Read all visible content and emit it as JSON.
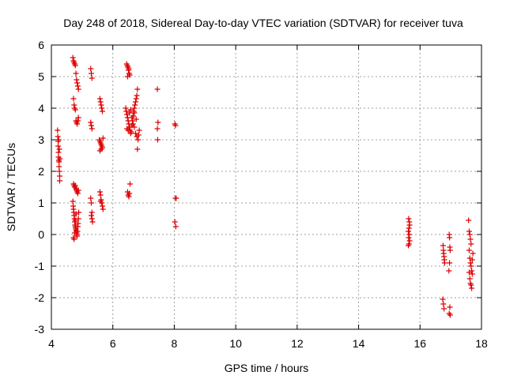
{
  "chart_data": {
    "type": "scatter",
    "title": "Day 248 of 2018, Sidereal Day-to-day VTEC variation (SDTVAR) for receiver tuva",
    "xlabel": "GPS time / hours",
    "ylabel": "SDTVAR / TECUs",
    "xlim": [
      4,
      18
    ],
    "ylim": [
      -3,
      6
    ],
    "xticks": [
      "4",
      "6",
      "8",
      "10",
      "12",
      "14",
      "16",
      "18"
    ],
    "yticks": [
      "-3",
      "-2",
      "-1",
      "0",
      "1",
      "2",
      "3",
      "4",
      "5",
      "6"
    ],
    "grid": true,
    "marker": "+",
    "color": "#dd0000",
    "series": [
      {
        "name": "SDTVAR",
        "points": [
          [
            4.2,
            3.3
          ],
          [
            4.21,
            3.1
          ],
          [
            4.22,
            2.95
          ],
          [
            4.22,
            2.8
          ],
          [
            4.23,
            2.6
          ],
          [
            4.23,
            2.45
          ],
          [
            4.24,
            2.35
          ],
          [
            4.25,
            2.3
          ],
          [
            4.25,
            2.15
          ],
          [
            4.26,
            2.0
          ],
          [
            4.27,
            1.85
          ],
          [
            4.27,
            1.7
          ],
          [
            4.24,
            3.0
          ],
          [
            4.26,
            2.7
          ],
          [
            4.28,
            2.4
          ],
          [
            4.7,
            5.6
          ],
          [
            4.72,
            5.5
          ],
          [
            4.74,
            5.45
          ],
          [
            4.76,
            5.4
          ],
          [
            4.78,
            5.35
          ],
          [
            4.8,
            5.1
          ],
          [
            4.82,
            4.9
          ],
          [
            4.84,
            4.8
          ],
          [
            4.86,
            4.7
          ],
          [
            4.88,
            4.6
          ],
          [
            4.72,
            4.3
          ],
          [
            4.74,
            4.1
          ],
          [
            4.76,
            4.0
          ],
          [
            4.78,
            3.95
          ],
          [
            4.8,
            3.6
          ],
          [
            4.82,
            3.55
          ],
          [
            4.84,
            3.5
          ],
          [
            4.86,
            3.6
          ],
          [
            4.88,
            3.7
          ],
          [
            4.72,
            1.6
          ],
          [
            4.74,
            1.55
          ],
          [
            4.76,
            1.5
          ],
          [
            4.78,
            1.55
          ],
          [
            4.8,
            1.45
          ],
          [
            4.82,
            1.4
          ],
          [
            4.84,
            1.35
          ],
          [
            4.86,
            1.3
          ],
          [
            4.88,
            1.4
          ],
          [
            4.7,
            1.05
          ],
          [
            4.71,
            0.9
          ],
          [
            4.72,
            0.8
          ],
          [
            4.73,
            0.7
          ],
          [
            4.74,
            0.6
          ],
          [
            4.75,
            0.5
          ],
          [
            4.76,
            0.4
          ],
          [
            4.77,
            0.3
          ],
          [
            4.78,
            0.25
          ],
          [
            4.79,
            0.2
          ],
          [
            4.8,
            0.15
          ],
          [
            4.81,
            0.1
          ],
          [
            4.82,
            0.05
          ],
          [
            4.83,
            0.0
          ],
          [
            4.84,
            -0.05
          ],
          [
            4.85,
            0.1
          ],
          [
            4.86,
            0.25
          ],
          [
            4.87,
            0.35
          ],
          [
            4.88,
            0.5
          ],
          [
            4.89,
            0.7
          ],
          [
            4.72,
            -0.1
          ],
          [
            4.74,
            -0.15
          ],
          [
            4.76,
            0.05
          ],
          [
            4.78,
            0.45
          ],
          [
            4.8,
            0.65
          ],
          [
            5.28,
            5.25
          ],
          [
            5.3,
            5.1
          ],
          [
            5.32,
            4.95
          ],
          [
            5.28,
            3.55
          ],
          [
            5.3,
            3.45
          ],
          [
            5.32,
            3.35
          ],
          [
            5.28,
            1.15
          ],
          [
            5.3,
            1.0
          ],
          [
            5.32,
            0.7
          ],
          [
            5.3,
            0.6
          ],
          [
            5.32,
            0.5
          ],
          [
            5.34,
            0.4
          ],
          [
            5.58,
            4.3
          ],
          [
            5.6,
            4.2
          ],
          [
            5.62,
            4.1
          ],
          [
            5.64,
            4.0
          ],
          [
            5.66,
            3.9
          ],
          [
            5.56,
            3.0
          ],
          [
            5.58,
            2.95
          ],
          [
            5.6,
            2.9
          ],
          [
            5.62,
            2.85
          ],
          [
            5.64,
            2.8
          ],
          [
            5.66,
            2.75
          ],
          [
            5.68,
            3.05
          ],
          [
            5.58,
            2.65
          ],
          [
            5.62,
            2.7
          ],
          [
            5.58,
            1.35
          ],
          [
            5.6,
            1.25
          ],
          [
            5.62,
            1.1
          ],
          [
            5.64,
            1.0
          ],
          [
            5.66,
            0.9
          ],
          [
            5.68,
            0.8
          ],
          [
            5.6,
            1.05
          ],
          [
            6.45,
            5.4
          ],
          [
            6.47,
            5.35
          ],
          [
            6.49,
            5.3
          ],
          [
            6.51,
            5.2
          ],
          [
            6.53,
            5.1
          ],
          [
            6.55,
            5.05
          ],
          [
            6.48,
            5.0
          ],
          [
            6.52,
            5.25
          ],
          [
            6.42,
            4.0
          ],
          [
            6.44,
            3.9
          ],
          [
            6.46,
            3.8
          ],
          [
            6.48,
            3.7
          ],
          [
            6.5,
            3.6
          ],
          [
            6.52,
            3.5
          ],
          [
            6.54,
            3.4
          ],
          [
            6.56,
            3.3
          ],
          [
            6.58,
            3.2
          ],
          [
            6.6,
            3.25
          ],
          [
            6.62,
            3.45
          ],
          [
            6.64,
            3.6
          ],
          [
            6.66,
            3.75
          ],
          [
            6.68,
            3.9
          ],
          [
            6.7,
            4.0
          ],
          [
            6.72,
            4.1
          ],
          [
            6.74,
            4.2
          ],
          [
            6.76,
            4.3
          ],
          [
            6.78,
            4.4
          ],
          [
            6.8,
            4.6
          ],
          [
            6.46,
            3.35
          ],
          [
            6.5,
            3.3
          ],
          [
            6.54,
            3.85
          ],
          [
            6.58,
            3.95
          ],
          [
            6.62,
            3.7
          ],
          [
            6.66,
            3.5
          ],
          [
            6.7,
            3.4
          ],
          [
            6.74,
            3.2
          ],
          [
            6.78,
            3.1
          ],
          [
            6.82,
            3.0
          ],
          [
            6.84,
            3.15
          ],
          [
            6.86,
            3.3
          ],
          [
            6.8,
            2.7
          ],
          [
            6.7,
            3.85
          ],
          [
            6.76,
            3.65
          ],
          [
            6.48,
            1.35
          ],
          [
            6.5,
            1.25
          ],
          [
            6.52,
            1.2
          ],
          [
            6.54,
            1.3
          ],
          [
            6.56,
            1.6
          ],
          [
            7.45,
            4.6
          ],
          [
            7.47,
            3.55
          ],
          [
            7.45,
            3.35
          ],
          [
            7.46,
            3.0
          ],
          [
            8.02,
            3.5
          ],
          [
            8.04,
            3.45
          ],
          [
            8.04,
            1.15
          ],
          [
            8.06,
            1.15
          ],
          [
            8.02,
            0.4
          ],
          [
            8.05,
            0.25
          ],
          [
            15.63,
            0.5
          ],
          [
            15.65,
            0.4
          ],
          [
            15.66,
            0.3
          ],
          [
            15.64,
            0.2
          ],
          [
            15.62,
            0.1
          ],
          [
            15.65,
            0.0
          ],
          [
            15.63,
            -0.1
          ],
          [
            15.66,
            -0.2
          ],
          [
            15.64,
            -0.3
          ],
          [
            15.62,
            -0.35
          ],
          [
            16.75,
            -0.35
          ],
          [
            16.76,
            -0.5
          ],
          [
            16.77,
            -0.6
          ],
          [
            16.78,
            -0.7
          ],
          [
            16.79,
            -0.8
          ],
          [
            16.8,
            -0.9
          ],
          [
            16.74,
            -2.05
          ],
          [
            16.76,
            -2.2
          ],
          [
            16.78,
            -2.35
          ],
          [
            16.95,
            0.0
          ],
          [
            16.96,
            -0.1
          ],
          [
            16.97,
            -0.4
          ],
          [
            16.98,
            -0.5
          ],
          [
            16.96,
            -0.9
          ],
          [
            16.94,
            -1.15
          ],
          [
            16.97,
            -2.3
          ],
          [
            16.95,
            -2.5
          ],
          [
            16.98,
            -2.55
          ],
          [
            17.58,
            0.45
          ],
          [
            17.6,
            0.1
          ],
          [
            17.62,
            0.0
          ],
          [
            17.64,
            -0.15
          ],
          [
            17.66,
            -0.3
          ],
          [
            17.6,
            -0.5
          ],
          [
            17.62,
            -0.75
          ],
          [
            17.64,
            -0.9
          ],
          [
            17.66,
            -1.0
          ],
          [
            17.68,
            -1.15
          ],
          [
            17.7,
            -1.25
          ],
          [
            17.62,
            -1.4
          ],
          [
            17.64,
            -1.55
          ],
          [
            17.66,
            -1.6
          ],
          [
            17.68,
            -1.7
          ],
          [
            17.6,
            -1.2
          ],
          [
            17.7,
            -0.8
          ],
          [
            17.72,
            -0.6
          ]
        ]
      }
    ]
  }
}
